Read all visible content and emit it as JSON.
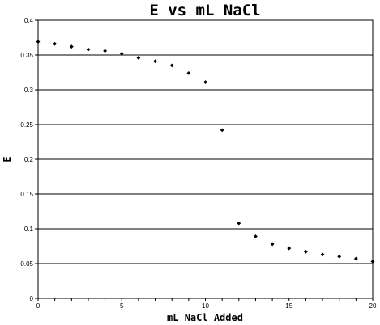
{
  "chart_data": {
    "type": "scatter",
    "title": "E vs mL NaCl",
    "xlabel": "mL NaCl Added",
    "ylabel": "E",
    "xlim": [
      0,
      20
    ],
    "ylim": [
      0,
      0.4
    ],
    "x_ticks": [
      "0",
      "5",
      "10",
      "15",
      "20"
    ],
    "y_ticks": [
      "0",
      "0.05",
      "0.1",
      "0.15",
      "0.2",
      "0.25",
      "0.3",
      "0.35",
      "0.4"
    ],
    "grid": "horizontal",
    "legend": "none",
    "marker_color": "#000000",
    "series": [
      {
        "x": [
          0,
          1,
          2,
          3,
          4,
          5,
          6,
          7,
          8,
          9,
          10,
          11,
          12,
          13,
          14,
          15,
          16,
          17,
          18,
          19,
          20
        ],
        "y": [
          0.369,
          0.366,
          0.362,
          0.358,
          0.356,
          0.352,
          0.346,
          0.341,
          0.335,
          0.324,
          0.311,
          0.242,
          0.108,
          0.089,
          0.078,
          0.072,
          0.067,
          0.063,
          0.06,
          0.057,
          0.053
        ]
      }
    ]
  }
}
